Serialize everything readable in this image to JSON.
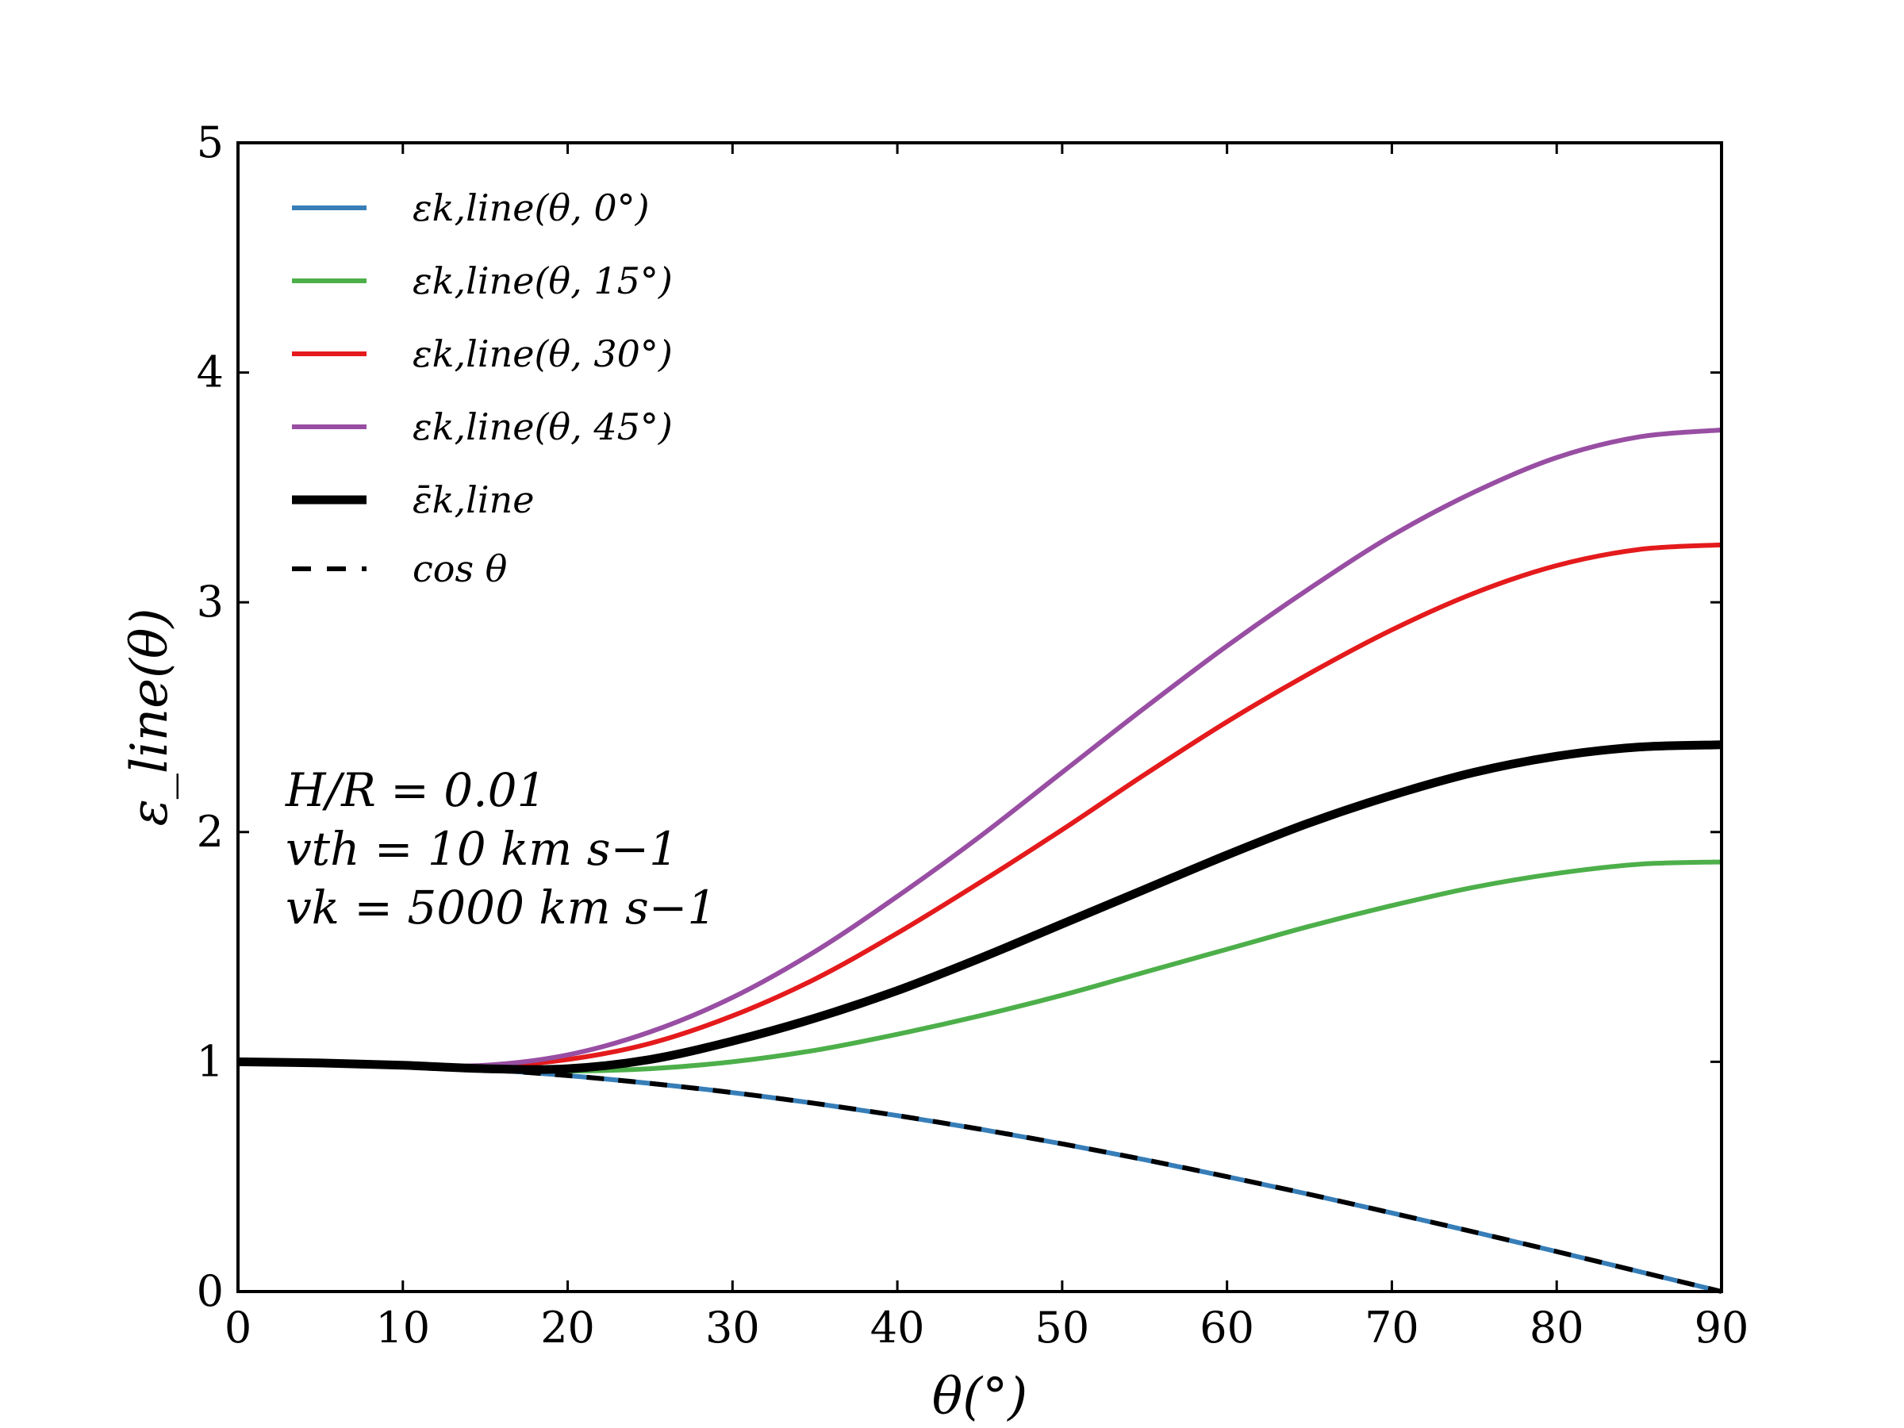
{
  "chart_data": {
    "type": "line",
    "title": "",
    "xlabel": "θ(°)",
    "ylabel": "ε_line(θ)",
    "xlim": [
      0,
      90
    ],
    "ylim": [
      0,
      5
    ],
    "xticks": [
      0,
      10,
      20,
      30,
      40,
      50,
      60,
      70,
      80,
      90
    ],
    "yticks": [
      0,
      1,
      2,
      3,
      4,
      5
    ],
    "grid": false,
    "legend_position": "top-left",
    "x": [
      0,
      5,
      10,
      15,
      20,
      25,
      30,
      35,
      40,
      45,
      50,
      55,
      60,
      65,
      70,
      75,
      80,
      85,
      90
    ],
    "series": [
      {
        "name": "εk,line(θ, 0°)",
        "color": "#377eb8",
        "style": "solid",
        "values": [
          1.0,
          0.996,
          0.985,
          0.966,
          0.94,
          0.906,
          0.866,
          0.819,
          0.766,
          0.707,
          0.643,
          0.574,
          0.5,
          0.423,
          0.342,
          0.259,
          0.174,
          0.087,
          0.0
        ]
      },
      {
        "name": "εk,line(θ, 15°)",
        "color": "#4daf4a",
        "style": "solid",
        "values": [
          1.0,
          0.995,
          0.985,
          0.97,
          0.96,
          0.97,
          1.0,
          1.05,
          1.12,
          1.2,
          1.29,
          1.39,
          1.49,
          1.59,
          1.68,
          1.76,
          1.82,
          1.86,
          1.87
        ]
      },
      {
        "name": "εk,line(θ, 30°)",
        "color": "#e41a1c",
        "style": "solid",
        "values": [
          1.0,
          0.995,
          0.985,
          0.98,
          1.01,
          1.08,
          1.2,
          1.36,
          1.56,
          1.78,
          2.01,
          2.25,
          2.48,
          2.69,
          2.88,
          3.04,
          3.16,
          3.23,
          3.25
        ]
      },
      {
        "name": "εk,line(θ, 45°)",
        "color": "#984ea3",
        "style": "solid",
        "values": [
          1.0,
          0.995,
          0.985,
          0.985,
          1.03,
          1.13,
          1.28,
          1.48,
          1.72,
          1.98,
          2.26,
          2.54,
          2.81,
          3.06,
          3.29,
          3.48,
          3.63,
          3.72,
          3.75
        ]
      },
      {
        "name": "ε̄k,line",
        "color": "#000000",
        "style": "thick",
        "values": [
          1.0,
          0.995,
          0.985,
          0.97,
          0.97,
          1.01,
          1.09,
          1.19,
          1.31,
          1.45,
          1.6,
          1.75,
          1.9,
          2.04,
          2.16,
          2.26,
          2.33,
          2.37,
          2.38
        ]
      },
      {
        "name": "cos θ",
        "color": "#000000",
        "style": "dashed",
        "values": [
          1.0,
          0.996,
          0.985,
          0.966,
          0.94,
          0.906,
          0.866,
          0.819,
          0.766,
          0.707,
          0.643,
          0.574,
          0.5,
          0.423,
          0.342,
          0.259,
          0.174,
          0.087,
          0.0
        ]
      }
    ],
    "annotations": [
      "H/R = 0.01",
      "vth = 10 km s−1",
      "vk = 5000 km s−1"
    ]
  }
}
